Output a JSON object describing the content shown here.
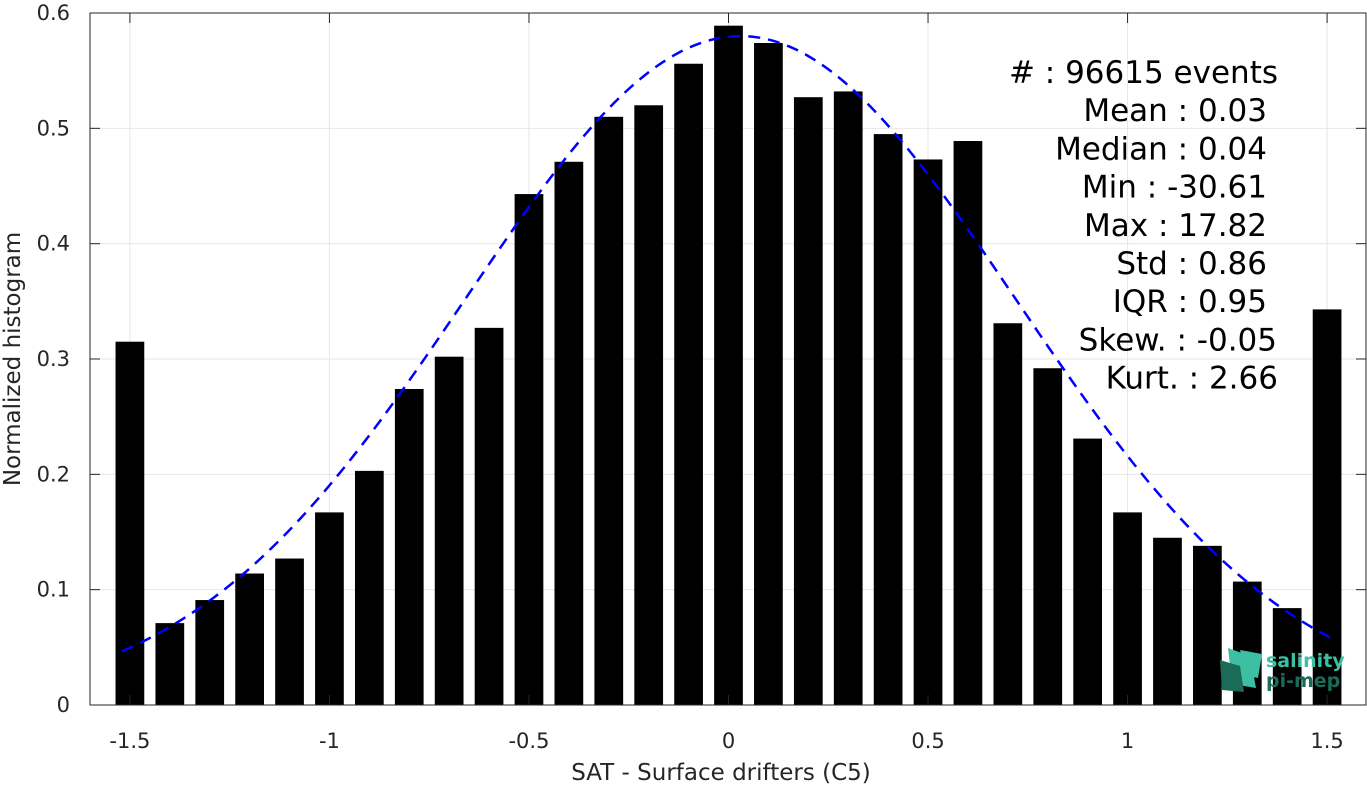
{
  "chart_data": {
    "type": "bar",
    "xlabel": "SAT - Surface drifters (C5)",
    "ylabel": "Normalized histogram",
    "xlim": [
      -1.6,
      1.6
    ],
    "ylim": [
      0,
      0.6
    ],
    "xticks": [
      -1.5,
      -1,
      -0.5,
      0,
      0.5,
      1,
      1.5
    ],
    "xtick_labels": [
      "-1.5",
      "-1",
      "-0.5",
      "0",
      "0.5",
      "1",
      "1.5"
    ],
    "yticks": [
      0,
      0.1,
      0.2,
      0.3,
      0.4,
      0.5,
      0.6
    ],
    "ytick_labels": [
      "0",
      "0.1",
      "0.2",
      "0.3",
      "0.4",
      "0.5",
      "0.6"
    ],
    "grid": true,
    "bar_color": "#000000",
    "fit_color": "#0000ff",
    "bins_x": [
      -1.5,
      -1.4,
      -1.3,
      -1.2,
      -1.1,
      -1.0,
      -0.9,
      -0.8,
      -0.7,
      -0.6,
      -0.5,
      -0.4,
      -0.3,
      -0.2,
      -0.1,
      0.0,
      0.1,
      0.2,
      0.3,
      0.4,
      0.5,
      0.6,
      0.7,
      0.8,
      0.9,
      1.0,
      1.1,
      1.2,
      1.3,
      1.4,
      1.5
    ],
    "values": [
      0.315,
      0.071,
      0.091,
      0.114,
      0.127,
      0.167,
      0.203,
      0.274,
      0.302,
      0.327,
      0.443,
      0.471,
      0.51,
      0.52,
      0.556,
      0.589,
      0.574,
      0.527,
      0.532,
      0.495,
      0.473,
      0.489,
      0.331,
      0.292,
      0.231,
      0.167,
      0.145,
      0.138,
      0.107,
      0.084,
      0.343
    ],
    "fit_curve": {
      "style": "dashed",
      "mean": 0.03,
      "std": 0.69,
      "peak": 0.58,
      "x_range": [
        -1.52,
        1.52
      ]
    },
    "annotations": [
      "#  : 96615 events",
      "Mean : 0.03",
      "Median : 0.04",
      "Min : -30.61",
      "Max : 17.82",
      "Std : 0.86",
      "IQR : 0.95",
      "Skew. : -0.05",
      "Kurt. : 2.66"
    ]
  },
  "logo": {
    "line1": "salinity",
    "line2": "pi-mep",
    "color_light": "#3dbfa3",
    "color_dark": "#1c6a58"
  }
}
